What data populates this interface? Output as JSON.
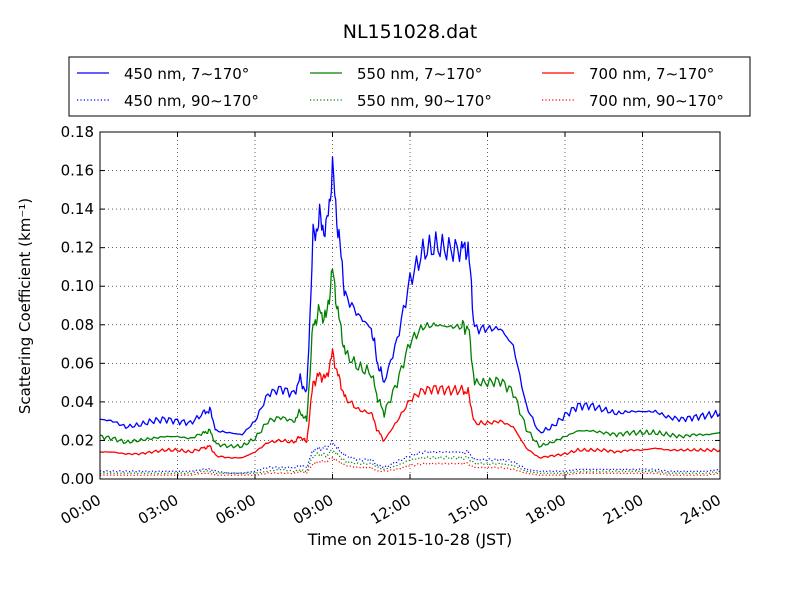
{
  "chart_data": {
    "type": "line",
    "title": "NL151028.dat",
    "xlabel": "Time on 2015-10-28 (JST)",
    "ylabel": "Scattering Coefficient (km⁻¹)",
    "xlim": [
      "00:00",
      "24:00"
    ],
    "ylim": [
      0.0,
      0.18
    ],
    "xticks": [
      "00:00",
      "03:00",
      "06:00",
      "09:00",
      "12:00",
      "15:00",
      "18:00",
      "21:00",
      "24:00"
    ],
    "yticks": [
      "0.00",
      "0.02",
      "0.04",
      "0.06",
      "0.08",
      "0.10",
      "0.12",
      "0.14",
      "0.16",
      "0.18"
    ],
    "grid": true,
    "legend_position": "top, above plot",
    "x_hours": [
      0,
      0.5,
      1,
      1.5,
      2,
      2.5,
      3,
      3.5,
      4,
      4.25,
      4.5,
      5,
      5.5,
      6,
      6.5,
      7,
      7.5,
      7.75,
      8,
      8.25,
      8.5,
      8.75,
      9,
      9.25,
      9.5,
      10,
      10.5,
      10.75,
      11,
      11.5,
      12,
      12.5,
      13,
      13.5,
      14,
      14.25,
      14.5,
      15,
      15.5,
      16,
      16.5,
      17,
      17.5,
      18,
      18.5,
      19,
      19.5,
      20,
      20.5,
      21,
      21.5,
      22,
      22.5,
      23,
      23.5,
      24
    ],
    "series": [
      {
        "name": "450 nm, 7∼170°",
        "color": "#0000ff",
        "style": "solid",
        "values": [
          0.031,
          0.03,
          0.027,
          0.028,
          0.03,
          0.031,
          0.03,
          0.029,
          0.034,
          0.036,
          0.025,
          0.024,
          0.023,
          0.03,
          0.044,
          0.047,
          0.044,
          0.052,
          0.044,
          0.125,
          0.135,
          0.128,
          0.16,
          0.125,
          0.095,
          0.085,
          0.078,
          0.06,
          0.05,
          0.072,
          0.103,
          0.118,
          0.121,
          0.119,
          0.119,
          0.12,
          0.078,
          0.078,
          0.078,
          0.069,
          0.038,
          0.024,
          0.027,
          0.033,
          0.038,
          0.038,
          0.036,
          0.034,
          0.035,
          0.035,
          0.035,
          0.032,
          0.031,
          0.032,
          0.033,
          0.034
        ]
      },
      {
        "name": "550 nm, 7∼170°",
        "color": "#008000",
        "style": "solid",
        "values": [
          0.022,
          0.021,
          0.019,
          0.02,
          0.021,
          0.022,
          0.022,
          0.021,
          0.024,
          0.025,
          0.018,
          0.017,
          0.017,
          0.021,
          0.03,
          0.032,
          0.03,
          0.035,
          0.03,
          0.08,
          0.087,
          0.083,
          0.108,
          0.083,
          0.065,
          0.058,
          0.055,
          0.042,
          0.034,
          0.05,
          0.071,
          0.079,
          0.08,
          0.079,
          0.079,
          0.079,
          0.05,
          0.05,
          0.051,
          0.045,
          0.026,
          0.017,
          0.019,
          0.022,
          0.025,
          0.025,
          0.024,
          0.023,
          0.024,
          0.024,
          0.024,
          0.023,
          0.022,
          0.023,
          0.023,
          0.024
        ]
      },
      {
        "name": "700 nm, 7∼170°",
        "color": "#ff0000",
        "style": "solid",
        "values": [
          0.014,
          0.014,
          0.013,
          0.013,
          0.014,
          0.015,
          0.015,
          0.014,
          0.016,
          0.017,
          0.012,
          0.011,
          0.011,
          0.014,
          0.019,
          0.02,
          0.019,
          0.022,
          0.019,
          0.05,
          0.054,
          0.052,
          0.065,
          0.052,
          0.042,
          0.036,
          0.034,
          0.025,
          0.02,
          0.03,
          0.041,
          0.046,
          0.047,
          0.046,
          0.046,
          0.045,
          0.029,
          0.029,
          0.03,
          0.027,
          0.016,
          0.011,
          0.012,
          0.013,
          0.015,
          0.015,
          0.015,
          0.014,
          0.015,
          0.015,
          0.016,
          0.015,
          0.015,
          0.015,
          0.015,
          0.015
        ]
      },
      {
        "name": "450 nm, 90∼170°",
        "color": "#0000ff",
        "style": "dotted",
        "values": [
          0.004,
          0.004,
          0.004,
          0.004,
          0.004,
          0.004,
          0.004,
          0.004,
          0.005,
          0.005,
          0.004,
          0.003,
          0.003,
          0.004,
          0.006,
          0.006,
          0.006,
          0.007,
          0.006,
          0.015,
          0.016,
          0.016,
          0.019,
          0.015,
          0.012,
          0.01,
          0.01,
          0.007,
          0.006,
          0.009,
          0.012,
          0.014,
          0.014,
          0.014,
          0.014,
          0.014,
          0.01,
          0.01,
          0.01,
          0.009,
          0.005,
          0.004,
          0.004,
          0.004,
          0.005,
          0.005,
          0.005,
          0.005,
          0.005,
          0.005,
          0.005,
          0.004,
          0.004,
          0.004,
          0.004,
          0.005
        ]
      },
      {
        "name": "550 nm, 90∼170°",
        "color": "#008000",
        "style": "dotted",
        "values": [
          0.003,
          0.003,
          0.003,
          0.003,
          0.003,
          0.003,
          0.003,
          0.003,
          0.004,
          0.004,
          0.003,
          0.003,
          0.003,
          0.003,
          0.004,
          0.005,
          0.004,
          0.005,
          0.004,
          0.012,
          0.013,
          0.012,
          0.015,
          0.012,
          0.009,
          0.008,
          0.008,
          0.006,
          0.005,
          0.007,
          0.01,
          0.011,
          0.011,
          0.011,
          0.011,
          0.011,
          0.008,
          0.008,
          0.008,
          0.007,
          0.004,
          0.003,
          0.003,
          0.003,
          0.004,
          0.004,
          0.004,
          0.004,
          0.004,
          0.004,
          0.004,
          0.003,
          0.003,
          0.003,
          0.003,
          0.004
        ]
      },
      {
        "name": "700 nm, 90∼170°",
        "color": "#ff0000",
        "style": "dotted",
        "values": [
          0.002,
          0.002,
          0.002,
          0.002,
          0.002,
          0.002,
          0.002,
          0.002,
          0.003,
          0.003,
          0.002,
          0.002,
          0.002,
          0.002,
          0.003,
          0.003,
          0.003,
          0.004,
          0.003,
          0.008,
          0.009,
          0.009,
          0.011,
          0.009,
          0.007,
          0.006,
          0.006,
          0.004,
          0.004,
          0.005,
          0.007,
          0.008,
          0.008,
          0.008,
          0.008,
          0.008,
          0.006,
          0.006,
          0.006,
          0.005,
          0.003,
          0.002,
          0.002,
          0.002,
          0.003,
          0.003,
          0.003,
          0.003,
          0.003,
          0.003,
          0.003,
          0.002,
          0.002,
          0.002,
          0.002,
          0.003
        ]
      }
    ]
  }
}
